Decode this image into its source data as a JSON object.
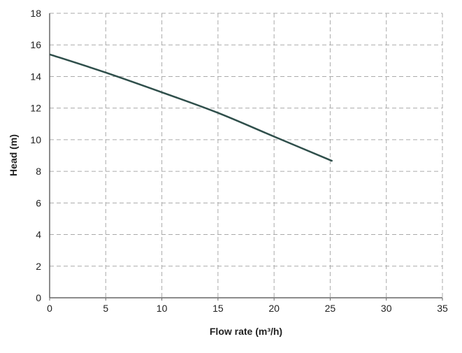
{
  "chart_data": {
    "type": "line",
    "title": "",
    "xlabel": "Flow rate (m³/h)",
    "ylabel": "Head (m)",
    "xlim": [
      0,
      35
    ],
    "ylim": [
      0,
      18
    ],
    "xticks": [
      0,
      5,
      10,
      15,
      20,
      25,
      30,
      35
    ],
    "yticks": [
      0,
      2,
      4,
      6,
      8,
      10,
      12,
      14,
      16,
      18
    ],
    "grid": true,
    "grid_style": "dashed",
    "series": [
      {
        "color": "#2f4f4b",
        "x": [
          0,
          5,
          10,
          15,
          20,
          25.2
        ],
        "y": [
          15.4,
          14.25,
          13.0,
          11.7,
          10.2,
          8.65
        ]
      }
    ]
  }
}
